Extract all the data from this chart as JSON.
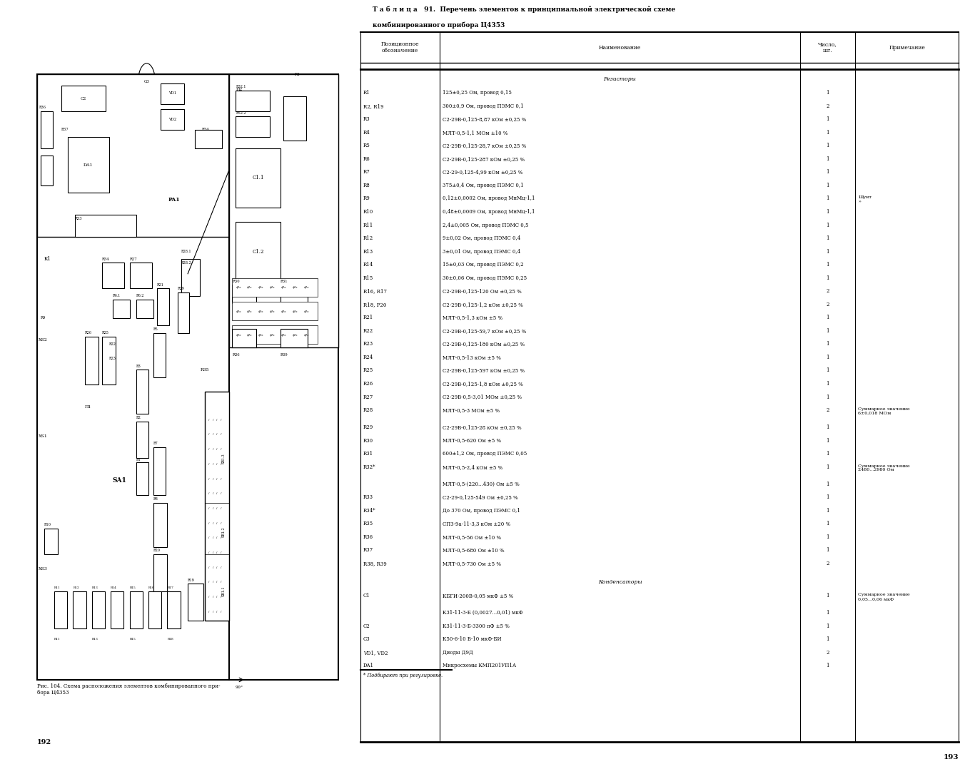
{
  "page_bg": "#ffffff",
  "left_page_num": "192",
  "right_page_num": "193",
  "fig_caption": "Рис. 104. Схема расположения элементов комбинированного при-\nбора Ц4353",
  "table_title_line1": "Т а б л и ц а   91.  Перечень элементов к принципиальной электрической схеме",
  "table_title_line2": "комбинированного прибора Ц4353",
  "col_headers": [
    "Позиционное\nобозначение",
    "Наименование",
    "Число,\nшт.",
    "Примечание"
  ],
  "section_resistors": "Резисторы",
  "section_capacitors": "Конденсаторы",
  "footnote": "* Подбирают при регулировке.",
  "rows": [
    [
      "R1",
      "125±0,25 Ом, провод 0,15",
      "1",
      ""
    ],
    [
      "R2, R19",
      "300±0,9 Ом, провод ПЭМС 0,1",
      "2",
      ""
    ],
    [
      "R3",
      "С2-29В-0,125-8,87 кОм ±0,25 %",
      "1",
      ""
    ],
    [
      "R4",
      "МЛТ-0,5-1,1 МОм ±10 %",
      "1",
      ""
    ],
    [
      "R5",
      "С2-29В-0,125-28,7 кОм ±0,25 %",
      "1",
      ""
    ],
    [
      "R6",
      "С2-29В-0,125-287 кОм ±0,25 %",
      "1",
      ""
    ],
    [
      "R7",
      "С2-29-0,125-4,99 кОм ±0,25 %",
      "1",
      ""
    ],
    [
      "R8",
      "375±0,4 Ом, провод ПЭМС 0,1",
      "1",
      ""
    ],
    [
      "R9",
      "0,12±0,0002 Ом, провод МнМц-1,1",
      "1",
      "Шунт\n»"
    ],
    [
      "R10",
      "0,48±0,0009 Ом, провод МнМц-1,1",
      "1",
      ""
    ],
    [
      "R11",
      "2,4±0,005 Ом, провод ПЭМС 0,5",
      "1",
      ""
    ],
    [
      "R12",
      "9±0,02 Ом, провод ПЭМС 0,4",
      "1",
      ""
    ],
    [
      "R13",
      "3±0,01 Ом, провод ПЭМС 0,4",
      "1",
      ""
    ],
    [
      "R14",
      "15±0,03 Ом, провод ПЭМС 0,2",
      "1",
      ""
    ],
    [
      "R15",
      "30±0,06 Ом, провод ПЭМС 0,25",
      "1",
      ""
    ],
    [
      "R16, R17",
      "С2-29В-0,125-120 Ом ±0,25 %",
      "2",
      ""
    ],
    [
      "R18, Р20",
      "С2-29В-0,125-1,2 кОм ±0,25 %",
      "2",
      ""
    ],
    [
      "R21",
      "МЛТ-0,5-1,3 кОм ±5 %",
      "1",
      ""
    ],
    [
      "R22",
      "С2-29В-0,125-59,7 кОм ±0,25 %",
      "1",
      ""
    ],
    [
      "R23",
      "С2-29В-0,125-180 кОм ±0,25 %",
      "1",
      ""
    ],
    [
      "R24",
      "МЛТ-0,5-13 кОм ±5 %",
      "1",
      ""
    ],
    [
      "R25",
      "С2-29В-0,125-597 кОм ±0,25 %",
      "1",
      ""
    ],
    [
      "R26",
      "С2-29В-0,125-1,8 кОм ±0,25 %",
      "1",
      ""
    ],
    [
      "R27",
      "С2-29В-0,5-3,01 МОм ±0,25 %",
      "1",
      ""
    ],
    [
      "R28",
      "МЛТ-0,5-3 МОм ±5 %",
      "2",
      "Суммарное значение\n6±0,018 МОм"
    ],
    [
      "R29",
      "С2-29В-0,125-28 кОм ±0,25 %",
      "1",
      ""
    ],
    [
      "R30",
      "МЛТ-0,5-620 Ом ±5 %",
      "1",
      ""
    ],
    [
      "R31",
      "600±1,2 Ом, провод ПЭМС 0,05",
      "1",
      ""
    ],
    [
      "R32*",
      "МЛТ-0,5-2,4 кОм ±5 %",
      "1",
      "Суммарное значение\n2480...2980 Ом"
    ],
    [
      "",
      "МЛТ-0,5-(220...430) Ом ±5 %",
      "1",
      ""
    ],
    [
      "R33",
      "С2-29-0,125-549 Ом ±0,25 %",
      "1",
      ""
    ],
    [
      "R34*",
      "До 370 Ом, провод ПЭМС 0,1",
      "1",
      ""
    ],
    [
      "R35",
      "СПЗ-9а-11-3,3 кОм ±20 %",
      "1",
      ""
    ],
    [
      "R36",
      "МЛТ-0,5-56 Ом ±10 %",
      "1",
      ""
    ],
    [
      "R37",
      "МЛТ-0,5-680 Ом ±10 %",
      "1",
      ""
    ],
    [
      "R38, R39",
      "МЛТ-0,5-730 Ом ±5 %",
      "2",
      ""
    ],
    [
      "C1",
      "КБГИ-200В-0,05 мкФ ±5 %",
      "1",
      "Суммарное значение\n0,05...0,06 мкФ"
    ],
    [
      "",
      "К31-11-3-Б (0,0027...0,01) мкФ",
      "1",
      ""
    ],
    [
      "C2",
      "К31-11-3-Б-3300 пФ ±5 %",
      "1",
      ""
    ],
    [
      "C3",
      "К50-6-10 В-10 мкФ-БИ",
      "1",
      ""
    ],
    [
      "VD1, VD2",
      "Диоды Д9Д",
      "2",
      ""
    ],
    [
      "DA1",
      "Микросхемы КМП201УП1А",
      "1",
      ""
    ]
  ]
}
